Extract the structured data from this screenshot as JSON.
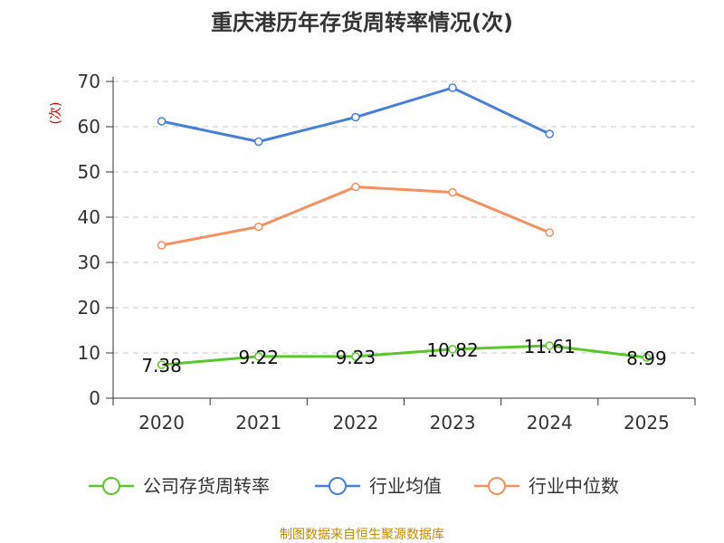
{
  "chart_data": {
    "type": "line",
    "title": "重庆港历年存货周转率情况(次)",
    "ylabel": "(次)",
    "xlabel": "",
    "categories": [
      "2020",
      "2021",
      "2022",
      "2023",
      "2024",
      "2025"
    ],
    "yticks": [
      "0",
      "10",
      "20",
      "30",
      "40",
      "50",
      "60",
      "70"
    ],
    "ylim": [
      0,
      70
    ],
    "grid": true,
    "legend_position": "bottom",
    "series": [
      {
        "name": "公司存货周转率",
        "color": "#5bc72d",
        "values": [
          7.38,
          9.22,
          9.23,
          10.82,
          11.61,
          8.99
        ],
        "labels": [
          "7.38",
          "9.22",
          "9.23",
          "10.82",
          "11.61",
          "8.99"
        ]
      },
      {
        "name": "行业均值",
        "color": "#4a7fd6",
        "values": [
          61.2,
          56.7,
          62.1,
          68.6,
          58.4,
          null
        ]
      },
      {
        "name": "行业中位数",
        "color": "#f39260",
        "values": [
          33.8,
          37.9,
          46.7,
          45.5,
          36.6,
          null
        ]
      }
    ],
    "source": "制图数据来自恒生聚源数据库"
  }
}
